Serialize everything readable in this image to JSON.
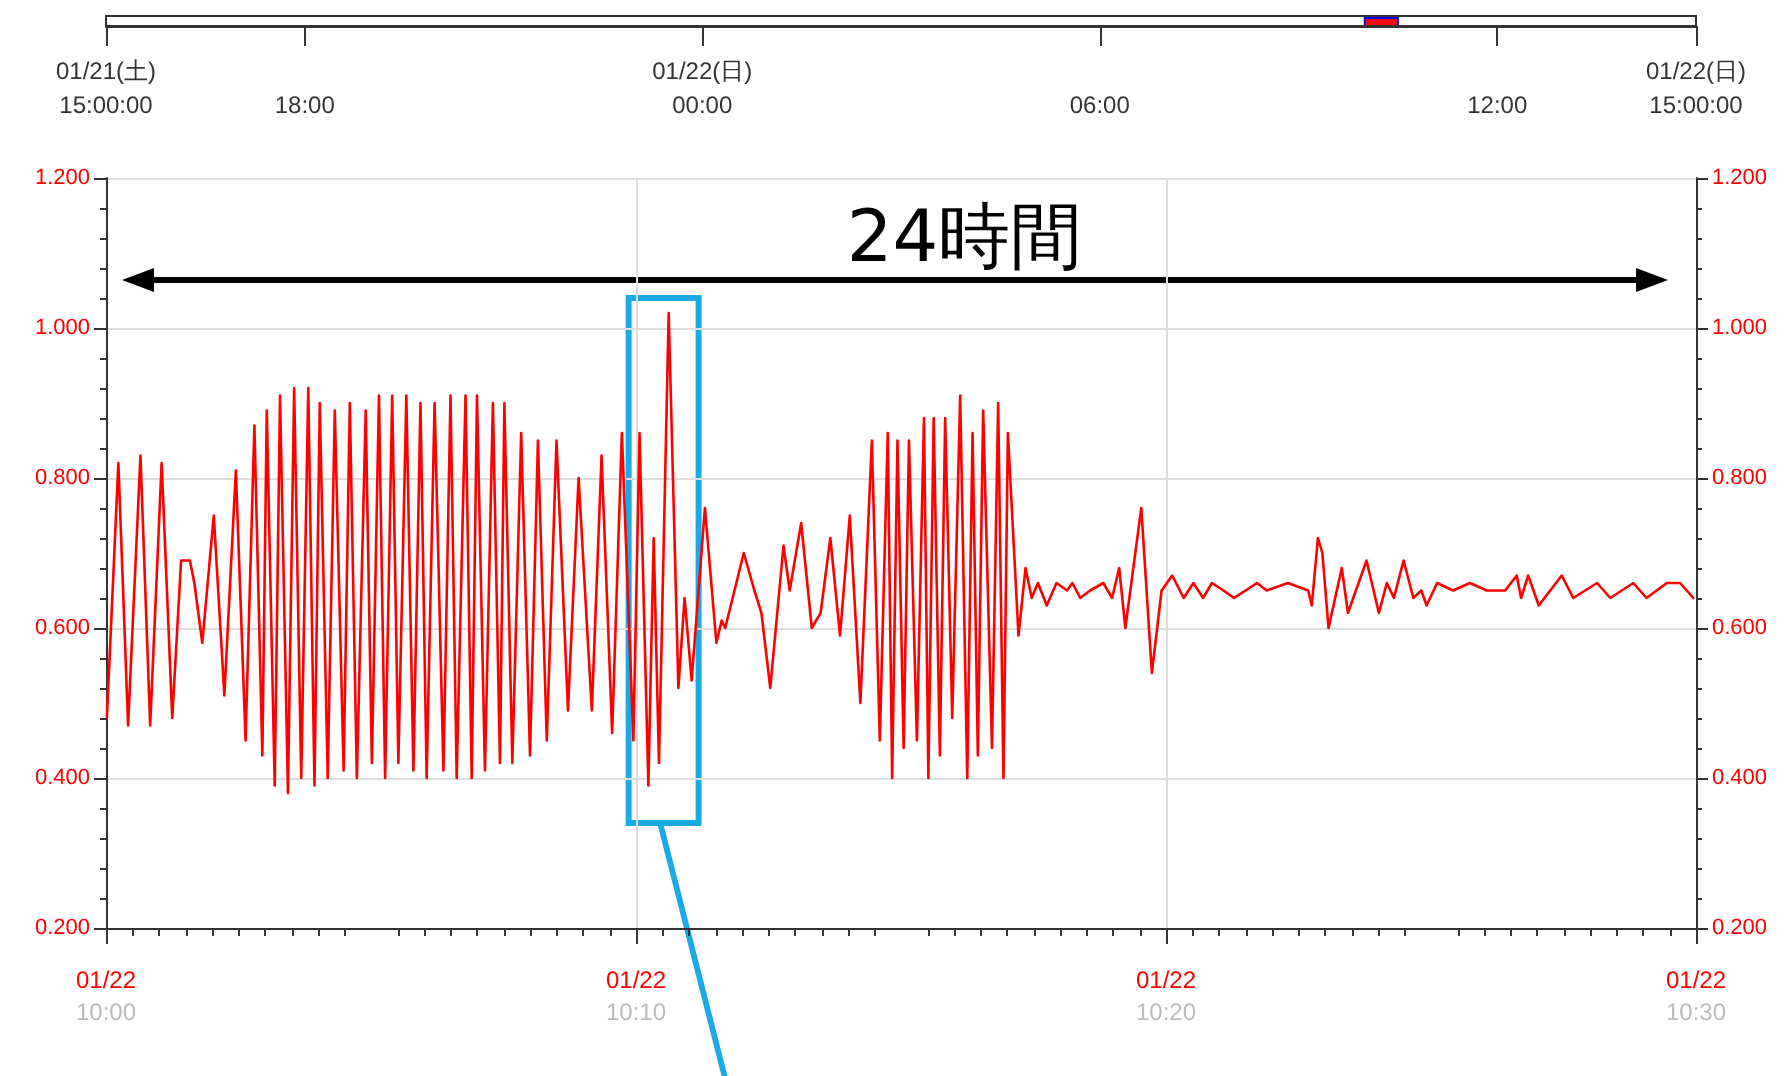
{
  "chart_data": {
    "type": "line",
    "annotations": [
      "24時間"
    ],
    "x": [
      "--01-22T10:00:01",
      "--01-22T10:00:14",
      "--01-22T10:00:25",
      "--01-22T10:00:39",
      "--01-22T10:00:50",
      "--01-22T10:01:03",
      "--01-22T10:01:15",
      "--01-22T10:01:25",
      "--01-22T10:01:35",
      "--01-22T10:01:40",
      "--01-22T10:01:49",
      "--01-22T10:02:02",
      "--01-22T10:02:14",
      "--01-22T10:02:27",
      "--01-22T10:02:38",
      "--01-22T10:02:48",
      "--01-22T10:02:57",
      "--01-22T10:03:02",
      "--01-22T10:03:11",
      "--01-22T10:03:17",
      "--01-22T10:03:26",
      "--01-22T10:03:33",
      "--01-22T10:03:41",
      "--01-22T10:03:49",
      "--01-22T10:03:56",
      "--01-22T10:04:02",
      "--01-22T10:04:11",
      "--01-22T10:04:19",
      "--01-22T10:04:29",
      "--01-22T10:04:36",
      "--01-22T10:04:44",
      "--01-22T10:04:54",
      "--01-22T10:05:01",
      "--01-22T10:05:09",
      "--01-22T10:05:16",
      "--01-22T10:05:24",
      "--01-22T10:05:31",
      "--01-22T10:05:40",
      "--01-22T10:05:48",
      "--01-22T10:05:56",
      "--01-22T10:06:03",
      "--01-22T10:06:12",
      "--01-22T10:06:22",
      "--01-22T10:06:30",
      "--01-22T10:06:37",
      "--01-22T10:06:47",
      "--01-22T10:06:54",
      "--01-22T10:07:00",
      "--01-22T10:07:09",
      "--01-22T10:07:18",
      "--01-22T10:07:26",
      "--01-22T10:07:31",
      "--01-22T10:07:40",
      "--01-22T10:07:50",
      "--01-22T10:08:00",
      "--01-22T10:08:09",
      "--01-22T10:08:19",
      "--01-22T10:08:30",
      "--01-22T10:08:43",
      "--01-22T10:08:55",
      "--01-22T10:09:10",
      "--01-22T10:09:21",
      "--01-22T10:09:33",
      "--01-22T10:09:44",
      "--01-22T10:09:57",
      "--01-22T10:10:04",
      "--01-22T10:10:14",
      "--01-22T10:10:20",
      "--01-22T10:10:26",
      "--01-22T10:10:37",
      "--01-22T10:10:48",
      "--01-22T10:10:55",
      "--01-22T10:11:03",
      "--01-22T10:11:18",
      "--01-22T10:11:31",
      "--01-22T10:11:37",
      "--01-22T10:11:41",
      "--01-22T10:12:02",
      "--01-22T10:12:14",
      "--01-22T10:12:22",
      "--01-22T10:12:32",
      "--01-22T10:12:47",
      "--01-22T10:12:54",
      "--01-22T10:13:07",
      "--01-22T10:13:19",
      "--01-22T10:13:29",
      "--01-22T10:13:40",
      "--01-22T10:13:51",
      "--01-22T10:14:02",
      "--01-22T10:14:14",
      "--01-22T10:14:27",
      "--01-22T10:14:36",
      "--01-22T10:14:45",
      "--01-22T10:14:50",
      "--01-22T10:14:56",
      "--01-22T10:15:03",
      "--01-22T10:15:09",
      "--01-22T10:15:18",
      "--01-22T10:15:26",
      "--01-22T10:15:31",
      "--01-22T10:15:37",
      "--01-22T10:15:44",
      "--01-22T10:15:50",
      "--01-22T10:15:58",
      "--01-22T10:16:07",
      "--01-22T10:16:15",
      "--01-22T10:16:21",
      "--01-22T10:16:27",
      "--01-22T10:16:33",
      "--01-22T10:16:43",
      "--01-22T10:16:50",
      "--01-22T10:16:56",
      "--01-22T10:17:01",
      "--01-22T10:17:13",
      "--01-22T10:17:21",
      "--01-22T10:17:28",
      "--01-22T10:17:35",
      "--01-22T10:17:45",
      "--01-22T10:17:56",
      "--01-22T10:18:08",
      "--01-22T10:18:14",
      "--01-22T10:18:23",
      "--01-22T10:18:34",
      "--01-22T10:18:49",
      "--01-22T10:18:59",
      "--01-22T10:19:07",
      "--01-22T10:19:14",
      "--01-22T10:19:32",
      "--01-22T10:19:44",
      "--01-22T10:19:55",
      "--01-22T10:20:07",
      "--01-22T10:20:20",
      "--01-22T10:20:31",
      "--01-22T10:20:42",
      "--01-22T10:20:52",
      "--01-22T10:21:05",
      "--01-22T10:21:17",
      "--01-22T10:21:30",
      "--01-22T10:21:43",
      "--01-22T10:21:54",
      "--01-22T10:22:18",
      "--01-22T10:22:41",
      "--01-22T10:22:45",
      "--01-22T10:22:52",
      "--01-22T10:22:57",
      "--01-22T10:23:04",
      "--01-22T10:23:19",
      "--01-22T10:23:26",
      "--01-22T10:23:47",
      "--01-22T10:24:01",
      "--01-22T10:24:10",
      "--01-22T10:24:18",
      "--01-22T10:24:29",
      "--01-22T10:24:40",
      "--01-22T10:24:49",
      "--01-22T10:24:55",
      "--01-22T10:25:07",
      "--01-22T10:25:25",
      "--01-22T10:25:44",
      "--01-22T10:26:03",
      "--01-22T10:26:24",
      "--01-22T10:26:37",
      "--01-22T10:26:42",
      "--01-22T10:26:50",
      "--01-22T10:27:02",
      "--01-22T10:27:28",
      "--01-22T10:27:41",
      "--01-22T10:28:08",
      "--01-22T10:28:23",
      "--01-22T10:28:49",
      "--01-22T10:29:04",
      "--01-22T10:29:27",
      "--01-22T10:29:42",
      "--01-22T10:29:57"
    ],
    "series": [
      {
        "color": "#ff0000",
        "values": [
          0.48,
          0.82,
          0.47,
          0.83,
          0.47,
          0.82,
          0.48,
          0.69,
          0.69,
          0.66,
          0.58,
          0.75,
          0.51,
          0.81,
          0.45,
          0.87,
          0.43,
          0.89,
          0.39,
          0.91,
          0.38,
          0.92,
          0.4,
          0.92,
          0.39,
          0.9,
          0.4,
          0.89,
          0.41,
          0.9,
          0.4,
          0.89,
          0.42,
          0.91,
          0.4,
          0.91,
          0.42,
          0.91,
          0.41,
          0.9,
          0.4,
          0.9,
          0.41,
          0.91,
          0.4,
          0.91,
          0.4,
          0.91,
          0.41,
          0.9,
          0.42,
          0.9,
          0.42,
          0.86,
          0.43,
          0.85,
          0.45,
          0.85,
          0.49,
          0.8,
          0.49,
          0.83,
          0.46,
          0.86,
          0.45,
          0.86,
          0.39,
          0.72,
          0.42,
          1.02,
          0.52,
          0.64,
          0.53,
          0.76,
          0.58,
          0.61,
          0.6,
          0.7,
          0.65,
          0.62,
          0.52,
          0.71,
          0.65,
          0.74,
          0.6,
          0.62,
          0.72,
          0.59,
          0.75,
          0.5,
          0.85,
          0.45,
          0.86,
          0.4,
          0.85,
          0.44,
          0.85,
          0.45,
          0.88,
          0.4,
          0.88,
          0.43,
          0.88,
          0.48,
          0.91,
          0.4,
          0.86,
          0.43,
          0.89,
          0.44,
          0.9,
          0.4,
          0.86,
          0.59,
          0.68,
          0.64,
          0.66,
          0.63,
          0.66,
          0.65,
          0.66,
          0.64,
          0.65,
          0.66,
          0.64,
          0.68,
          0.6,
          0.76,
          0.54,
          0.65,
          0.67,
          0.64,
          0.66,
          0.64,
          0.66,
          0.65,
          0.64,
          0.65,
          0.66,
          0.65,
          0.66,
          0.65,
          0.63,
          0.72,
          0.7,
          0.6,
          0.68,
          0.62,
          0.69,
          0.62,
          0.66,
          0.64,
          0.69,
          0.64,
          0.65,
          0.63,
          0.66,
          0.65,
          0.66,
          0.65,
          0.65,
          0.67,
          0.64,
          0.67,
          0.63,
          0.67,
          0.64,
          0.66,
          0.64,
          0.66,
          0.64,
          0.66,
          0.66,
          0.64
        ]
      }
    ],
    "xlim": [
      "--01-22T10:00",
      "--01-22T10:30"
    ],
    "xticks": [
      {
        "value": "--01-22T10:00",
        "label": "01/22\n10:00"
      },
      {
        "value": "--01-22T10:10",
        "label": "01/22\n10:10"
      },
      {
        "value": "--01-22T10:20",
        "label": "01/22\n10:20"
      },
      {
        "value": "--01-22T10:30",
        "label": "01/22\n10:30"
      }
    ],
    "x2lim": [
      "--01-21T15:00",
      "--01-22T15:00"
    ],
    "x2ticks": [
      {
        "value": "--01-21T15:00",
        "label": "01/21(土)\n15:00:00"
      },
      {
        "value": "--01-21T18:00",
        "label": "18:00"
      },
      {
        "value": "--01-22T00:00",
        "label": "01/22(日)\n00:00"
      },
      {
        "value": "--01-22T06:00",
        "label": "06:00"
      },
      {
        "value": "--01-22T12:00",
        "label": "12:00"
      },
      {
        "value": "--01-22T15:00",
        "label": "01/22(日)\n15:00:00"
      }
    ],
    "ylim": [
      0.2,
      1.2
    ],
    "yticks": [
      {
        "value": 0.2,
        "label": "0.200"
      },
      {
        "value": 0.4,
        "label": "0.400"
      },
      {
        "value": 0.6,
        "label": "0.600"
      },
      {
        "value": 0.8,
        "label": "0.800"
      },
      {
        "value": 1.0,
        "label": "1.000"
      },
      {
        "value": 1.2,
        "label": "1.200"
      }
    ],
    "y2lim": [
      0.2,
      1.2
    ],
    "y2ticks": [
      {
        "value": 0.2,
        "label": "0.200"
      },
      {
        "value": 0.4,
        "label": "0.400"
      },
      {
        "value": 0.6,
        "label": "0.600"
      },
      {
        "value": 0.8,
        "label": "0.800"
      },
      {
        "value": 1.0,
        "label": "1.000"
      },
      {
        "value": 1.2,
        "label": "1.200"
      }
    ],
    "grid": true,
    "marker": "none",
    "line_style": "solid"
  }
}
